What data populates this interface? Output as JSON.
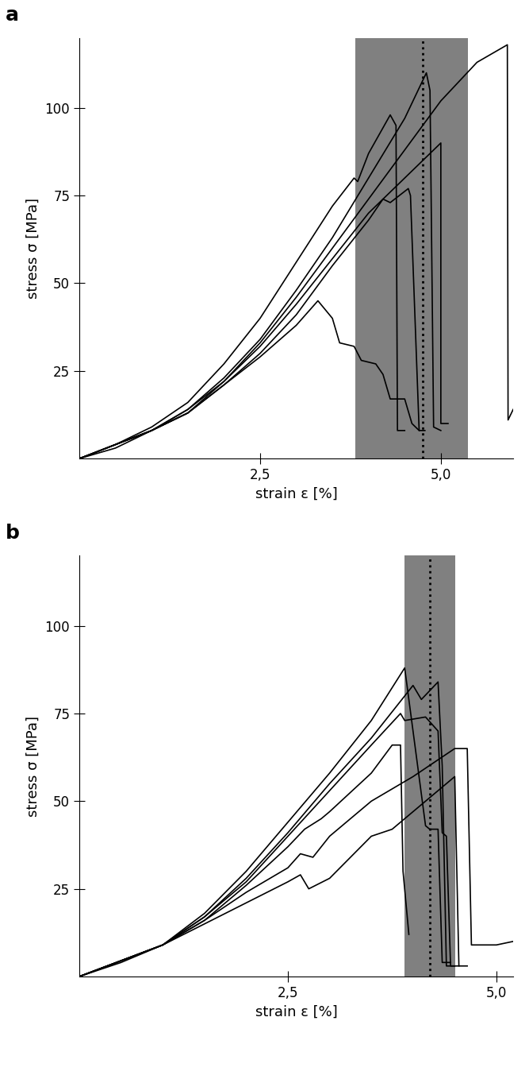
{
  "chart_data": [
    {
      "type": "line",
      "title": "a",
      "x_label": "strain ε [%]",
      "y_label": "stress σ [MPa]",
      "xlim": [
        0,
        6.0
      ],
      "ylim": [
        0,
        120
      ],
      "xticks": [
        {
          "value": 2.5,
          "label": "2,5"
        },
        {
          "value": 5.0,
          "label": "5,0"
        }
      ],
      "yticks": [
        25,
        50,
        75,
        100
      ],
      "grid": false,
      "shaded_range": [
        3.82,
        5.37
      ],
      "shaded_color": "#808080",
      "reference_line": 4.75,
      "series": [
        {
          "color": "#000000",
          "x": [
            0,
            0.5,
            1,
            1.5,
            2,
            2.5,
            3,
            3.5,
            3.8,
            3.85,
            4.0,
            4.3,
            4.38,
            4.4,
            4.5
          ],
          "values": [
            0,
            4,
            9,
            16,
            27,
            40,
            56,
            72,
            80,
            79,
            87,
            98,
            95,
            8,
            8
          ]
        },
        {
          "color": "#000000",
          "x": [
            0,
            0.5,
            1,
            1.5,
            2,
            2.5,
            3,
            3.5,
            4,
            4.5,
            4.8,
            4.85,
            4.9,
            5.0
          ],
          "values": [
            0,
            3,
            8,
            14,
            23,
            34,
            48,
            63,
            80,
            97,
            110,
            105,
            9,
            8
          ]
        },
        {
          "color": "#000000",
          "x": [
            0,
            1,
            1.5,
            2,
            2.5,
            3,
            3.5,
            4,
            4.5,
            5.0,
            5.0,
            5.1
          ],
          "values": [
            0,
            8,
            14,
            22,
            32,
            44,
            57,
            70,
            80,
            90,
            10,
            10
          ]
        },
        {
          "color": "#000000",
          "x": [
            0,
            1,
            1.5,
            2,
            2.5,
            3,
            3.5,
            4,
            4.2,
            4.3,
            4.55,
            4.58,
            4.7,
            4.78
          ],
          "values": [
            0,
            8,
            13,
            21,
            30,
            41,
            55,
            68,
            74,
            73,
            77,
            75,
            8,
            8
          ]
        },
        {
          "color": "#000000",
          "x": [
            0,
            1,
            1.5,
            2,
            2.5,
            3,
            3.3,
            3.5,
            3.6,
            3.8,
            3.9,
            4.1,
            4.2,
            4.3,
            4.5,
            4.6,
            4.7
          ],
          "values": [
            0,
            8,
            13,
            21,
            29,
            38,
            45,
            40,
            33,
            32,
            28,
            27,
            24,
            17,
            17,
            10,
            8
          ]
        },
        {
          "color": "#000000",
          "x": [
            0,
            1,
            1.5,
            2,
            2.5,
            3,
            3.5,
            4,
            4.5,
            5,
            5.5,
            5.92,
            5.93,
            6.0
          ],
          "values": [
            0,
            8,
            13,
            22,
            33,
            46,
            60,
            74,
            88,
            102,
            113,
            118,
            11,
            14
          ]
        }
      ]
    },
    {
      "type": "line",
      "title": "b",
      "x_label": "strain ε [%]",
      "y_label": "stress σ [MPa]",
      "xlim": [
        0,
        5.2
      ],
      "ylim": [
        0,
        120
      ],
      "xticks": [
        {
          "value": 2.5,
          "label": "2,5"
        },
        {
          "value": 5.0,
          "label": "5,0"
        }
      ],
      "yticks": [
        25,
        50,
        75,
        100
      ],
      "grid": false,
      "shaded_range": [
        3.9,
        4.51
      ],
      "shaded_color": "#808080",
      "reference_line": 4.2,
      "series": [
        {
          "color": "#000000",
          "x": [
            0,
            0.5,
            1,
            1.5,
            2,
            2.5,
            3,
            3.5,
            3.9,
            4.0,
            4.15,
            4.2,
            4.3,
            4.35,
            4.45
          ],
          "values": [
            0,
            4,
            9,
            18,
            30,
            44,
            58,
            73,
            88,
            70,
            43,
            42,
            42,
            4,
            4
          ]
        },
        {
          "color": "#000000",
          "x": [
            0,
            1,
            1.5,
            2,
            2.5,
            3,
            3.5,
            4.0,
            4.1,
            4.3,
            4.35,
            4.4,
            4.5
          ],
          "values": [
            0,
            9,
            17,
            28,
            41,
            55,
            68,
            83,
            79,
            84,
            60,
            3,
            3
          ]
        },
        {
          "color": "#000000",
          "x": [
            0,
            1,
            1.5,
            2,
            2.5,
            3,
            3.5,
            3.85,
            3.9,
            4.15,
            4.3,
            4.35,
            4.4,
            4.45,
            4.55
          ],
          "values": [
            0,
            9,
            17,
            27,
            40,
            53,
            66,
            75,
            73,
            74,
            70,
            41,
            40,
            3,
            3
          ]
        },
        {
          "color": "#000000",
          "x": [
            0,
            1,
            1.5,
            2,
            2.5,
            2.7,
            2.9,
            3,
            3.5,
            3.75,
            3.85,
            3.88,
            3.95
          ],
          "values": [
            0,
            9,
            16,
            26,
            37,
            42,
            45,
            47,
            58,
            66,
            66,
            30,
            12
          ]
        },
        {
          "color": "#000000",
          "x": [
            0,
            1,
            1.5,
            2,
            2.5,
            2.65,
            2.8,
            3,
            3.5,
            4,
            4.5,
            4.65,
            4.7,
            5.0,
            5.2
          ],
          "values": [
            0,
            9,
            16,
            24,
            31,
            35,
            34,
            40,
            50,
            57,
            65,
            65,
            9,
            9,
            10
          ]
        },
        {
          "color": "#000000",
          "x": [
            0,
            1,
            1.5,
            2,
            2.5,
            2.65,
            2.75,
            3,
            3.5,
            3.75,
            4,
            4.5,
            4.55,
            4.65
          ],
          "values": [
            0,
            9,
            15,
            21,
            27,
            29,
            25,
            28,
            40,
            42,
            47,
            57,
            3,
            3
          ]
        }
      ]
    }
  ]
}
